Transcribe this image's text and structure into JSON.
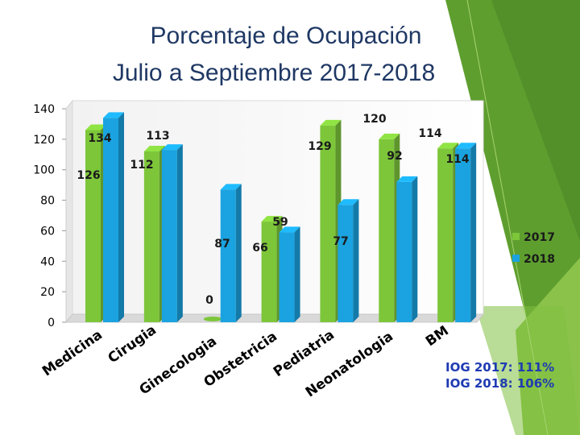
{
  "title_line1": "Porcentaje de Ocupación",
  "title_line2": "Julio a Septiembre 2017-2018",
  "iog": [
    "IOG 2017: 111%",
    "IOG 2018: 106%"
  ],
  "colors": {
    "series_2017": "#7dc63a",
    "series_2018": "#1aa3e0",
    "accent_green": "#8bc34a",
    "accent_dark": "#5e9e2f",
    "title": "#1f3864",
    "iog_text": "#1f3bb3"
  },
  "chart_data": {
    "type": "bar",
    "title": "Porcentaje de Ocupación Julio a Septiembre 2017-2018",
    "categories": [
      "Medicina",
      "Cirugia",
      "Ginecologia",
      "Obstetricia",
      "Pediatria",
      "Neonatologia",
      "BM"
    ],
    "series": [
      {
        "name": "2017",
        "values": [
          126,
          112,
          0,
          66,
          129,
          120,
          114
        ],
        "labels": [
          "126",
          "112",
          "",
          "66",
          "129",
          "120",
          "114"
        ]
      },
      {
        "name": "2018",
        "values": [
          134,
          113,
          87,
          59,
          77,
          92,
          114
        ],
        "labels": [
          "134",
          "113",
          "87",
          "59",
          "77",
          "92",
          "114"
        ]
      }
    ],
    "single_labels": [
      "0"
    ],
    "ylim": [
      0,
      140
    ],
    "yticks": [
      "0",
      "20",
      "40",
      "60",
      "80",
      "100",
      "120",
      "140"
    ],
    "grid": false,
    "legend_position": "right",
    "xlabel": "",
    "ylabel": ""
  }
}
